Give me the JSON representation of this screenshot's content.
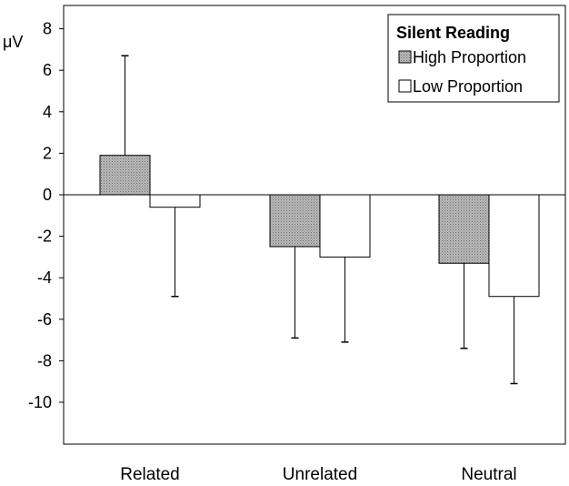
{
  "chart_data": {
    "type": "bar",
    "ylabel": "μV",
    "ylim": [
      -12,
      8
    ],
    "yticks": [
      8,
      6,
      4,
      2,
      0,
      -2,
      -4,
      -6,
      -8,
      -10
    ],
    "grid": false,
    "legend_position": "top-right",
    "legend_title": "Silent Reading",
    "categories": [
      "Related",
      "Unrelated",
      "Neutral"
    ],
    "series": [
      {
        "name": "High Proportion",
        "values": [
          1.9,
          -2.5,
          -3.3
        ],
        "error_bars": [
          4.8,
          -4.4,
          -4.1
        ],
        "color": "#a8a8a8",
        "pattern": "dotted-gray"
      },
      {
        "name": "Low Proportion",
        "values": [
          -0.6,
          -3.0,
          -4.9
        ],
        "error_bars": [
          -4.3,
          -4.1,
          -4.2
        ],
        "color": "#ffffff",
        "pattern": "none"
      }
    ]
  }
}
